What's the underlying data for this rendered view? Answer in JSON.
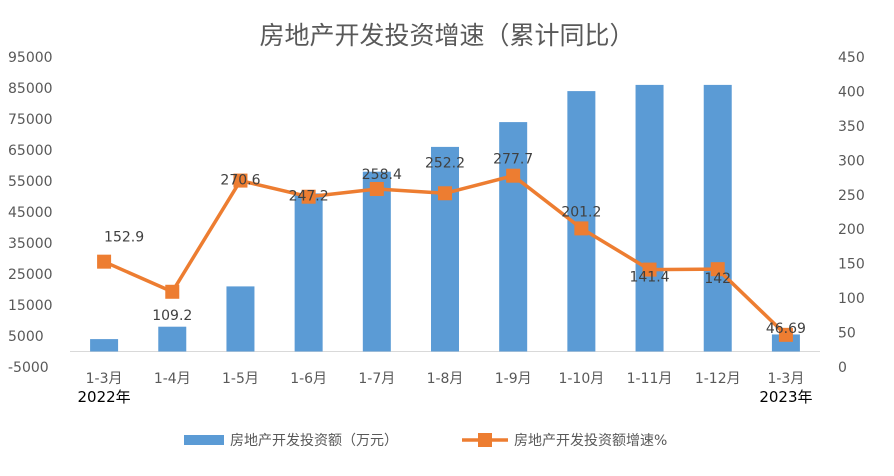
{
  "chart_data": {
    "type": "bar",
    "title": "房地产开发投资增速（累计同比）",
    "categories": [
      "1-3月",
      "1-4月",
      "1-5月",
      "1-6月",
      "1-7月",
      "1-8月",
      "1-9月",
      "1-10月",
      "1-11月",
      "1-12月",
      "1-3月"
    ],
    "year_labels": [
      {
        "category_index": 0,
        "text": "2022年"
      },
      {
        "category_index": 10,
        "text": "2023年"
      }
    ],
    "series": [
      {
        "name": "房地产开发投资额（万元）",
        "type": "bar",
        "axis": "left",
        "color": "#5B9BD5",
        "values": [
          4000,
          8000,
          21000,
          51000,
          58000,
          66000,
          74000,
          84000,
          86000,
          86000,
          5500
        ]
      },
      {
        "name": "房地产开发投资额增速%",
        "type": "line",
        "axis": "right",
        "color": "#ED7D31",
        "marker": "square",
        "values": [
          152.9,
          109.2,
          270.6,
          247.2,
          258.4,
          252.2,
          277.7,
          201.2,
          141.4,
          142,
          46.69
        ],
        "labels": [
          "152.9",
          "109.2",
          "270.6",
          "247.2",
          "258.4",
          "252.2",
          "277.7",
          "201.2",
          "141.4",
          "142",
          "46.69"
        ]
      }
    ],
    "y_left": {
      "min": -5000,
      "max": 95000,
      "ticks": [
        95000,
        85000,
        75000,
        65000,
        55000,
        45000,
        35000,
        25000,
        15000,
        5000,
        -5000
      ],
      "tick_labels": [
        "95000",
        "85000",
        "75000",
        "65000",
        "55000",
        "45000",
        "35000",
        "25000",
        "15000",
        "5000",
        "-5000"
      ]
    },
    "y_right": {
      "min": 0,
      "max": 450,
      "ticks": [
        450,
        400,
        350,
        300,
        250,
        200,
        150,
        100,
        50,
        0
      ],
      "tick_labels": [
        "450",
        "400",
        "350",
        "300",
        "250",
        "200",
        "150",
        "100",
        "50",
        "0"
      ]
    },
    "grid": false,
    "legend_position": "bottom"
  }
}
